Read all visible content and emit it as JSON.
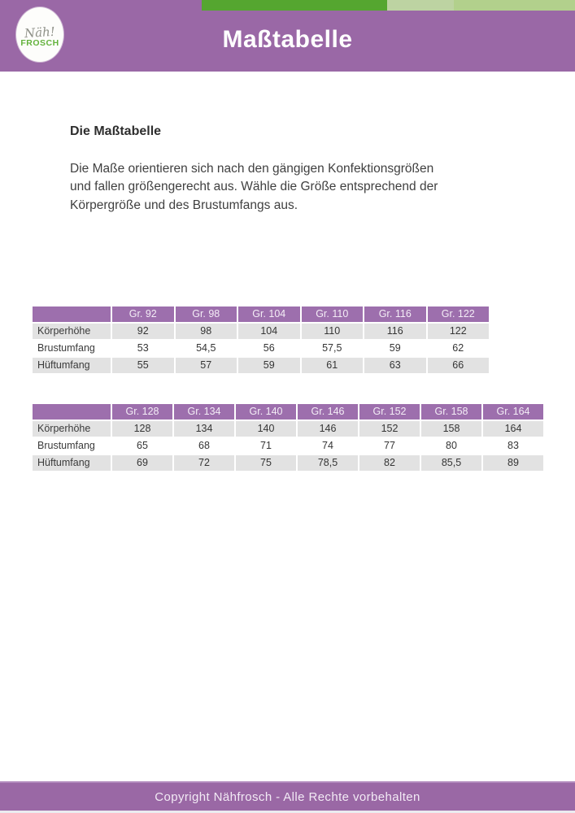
{
  "header": {
    "title": "Maßtabelle",
    "logo": {
      "script_text": "Näh!",
      "brand_text": "FROSCH"
    }
  },
  "colors": {
    "header_purple": "#9a68a6",
    "table_header_purple": "#9d6fad",
    "dark_green": "#55a630",
    "light_green_a": "#bdd3a2",
    "light_green_b": "#b2d08c",
    "row_gray": "#e2e2e2",
    "logo_green": "#63b23c"
  },
  "content": {
    "heading": "Die Maßtabelle",
    "paragraph": "Die Maße orientieren sich nach den gängigen Konfektionsgrößen\nund fallen größengerecht aus. Wähle die Größe entsprechend der\nKörpergröße und des Brustumfangs aus."
  },
  "tables": [
    {
      "columns": [
        "",
        "Gr. 92",
        "Gr. 98",
        "Gr. 104",
        "Gr. 110",
        "Gr. 116",
        "Gr. 122"
      ],
      "rows": [
        {
          "label": "Körperhöhe",
          "values": [
            "92",
            "98",
            "104",
            "110",
            "116",
            "122"
          ]
        },
        {
          "label": "Brustumfang",
          "values": [
            "53",
            "54,5",
            "56",
            "57,5",
            "59",
            "62"
          ]
        },
        {
          "label": "Hüftumfang",
          "values": [
            "55",
            "57",
            "59",
            "61",
            "63",
            "66"
          ]
        }
      ]
    },
    {
      "columns": [
        "",
        "Gr. 128",
        "Gr. 134",
        "Gr. 140",
        "Gr. 146",
        "Gr. 152",
        "Gr. 158",
        "Gr. 164"
      ],
      "rows": [
        {
          "label": "Körperhöhe",
          "values": [
            "128",
            "134",
            "140",
            "146",
            "152",
            "158",
            "164"
          ]
        },
        {
          "label": "Brustumfang",
          "values": [
            "65",
            "68",
            "71",
            "74",
            "77",
            "80",
            "83"
          ]
        },
        {
          "label": "Hüftumfang",
          "values": [
            "69",
            "72",
            "75",
            "78,5",
            "82",
            "85,5",
            "89"
          ]
        }
      ]
    }
  ],
  "footer": {
    "text": "Copyright Nähfrosch - Alle Rechte vorbehalten"
  }
}
